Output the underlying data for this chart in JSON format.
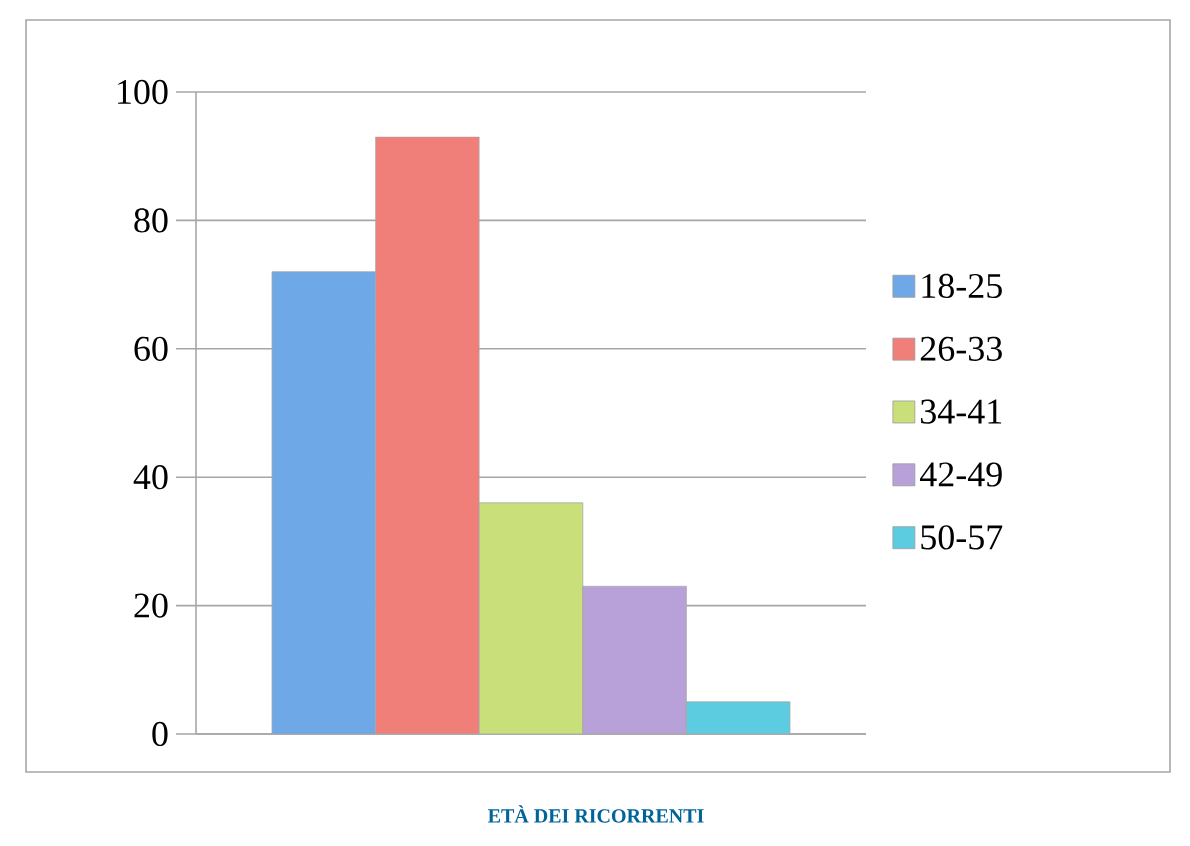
{
  "chart_data": {
    "type": "bar",
    "categories": [
      null
    ],
    "series": [
      {
        "name": "18-25",
        "color": "#6fa8e6",
        "values": [
          72
        ]
      },
      {
        "name": "26-33",
        "color": "#f07f7a",
        "values": [
          93
        ]
      },
      {
        "name": "34-41",
        "color": "#c9e07a",
        "values": [
          36
        ]
      },
      {
        "name": "42-49",
        "color": "#b8a0d8",
        "values": [
          23
        ]
      },
      {
        "name": "50-57",
        "color": "#5ccde0",
        "values": [
          5
        ]
      }
    ],
    "ylim": [
      0,
      100
    ],
    "yticks": [
      0,
      20,
      40,
      60,
      80,
      100
    ],
    "grid": "y",
    "legend": "right",
    "annotations": [
      "ETÀ DEI RICORRENTI"
    ]
  }
}
